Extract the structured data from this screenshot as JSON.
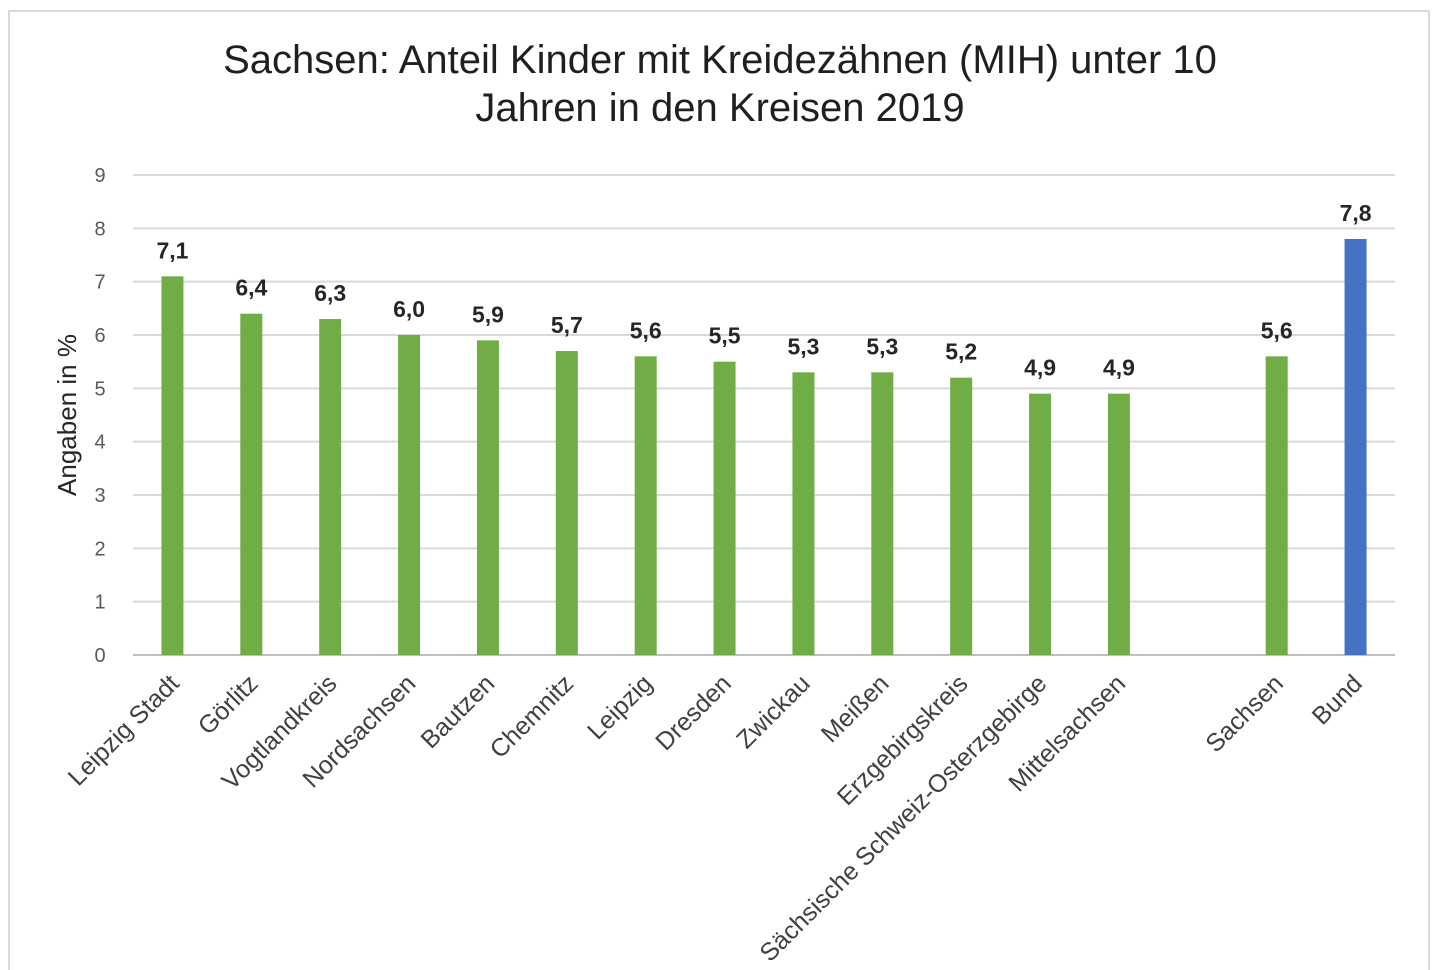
{
  "chart_data": {
    "type": "bar",
    "title_line1": "Sachsen: Anteil Kinder mit Kreidezähnen (MIH) unter 10",
    "title_line2": "Jahren in den Kreisen 2019",
    "ylabel": "Angaben in %",
    "xlabel": "",
    "ylim": [
      0,
      9
    ],
    "yticks": [
      "0",
      "1",
      "2",
      "3",
      "4",
      "5",
      "6",
      "7",
      "8",
      "9"
    ],
    "grid": true,
    "categories": [
      "Leipzig Stadt",
      "Görlitz",
      "Vogtlandkreis",
      "Nordsachsen",
      "Bautzen",
      "Chemnitz",
      "Leipzig",
      "Dresden",
      "Zwickau",
      "Meißen",
      "Erzgebirgskreis",
      "Sächsische Schweiz-Osterzgebirge",
      "Mittelsachsen",
      "",
      "Sachsen",
      "Bund"
    ],
    "values": [
      7.1,
      6.4,
      6.3,
      6.0,
      5.9,
      5.7,
      5.6,
      5.5,
      5.3,
      5.3,
      5.2,
      4.9,
      4.9,
      null,
      5.6,
      7.8
    ],
    "data_labels": [
      "7,1",
      "6,4",
      "6,3",
      "6,0",
      "5,9",
      "5,7",
      "5,6",
      "5,5",
      "5,3",
      "5,3",
      "5,2",
      "4,9",
      "4,9",
      "",
      "5,6",
      "7,8"
    ],
    "bar_colors": [
      "#70ad47",
      "#70ad47",
      "#70ad47",
      "#70ad47",
      "#70ad47",
      "#70ad47",
      "#70ad47",
      "#70ad47",
      "#70ad47",
      "#70ad47",
      "#70ad47",
      "#70ad47",
      "#70ad47",
      "#70ad47",
      "#70ad47",
      "#4472c4"
    ]
  }
}
